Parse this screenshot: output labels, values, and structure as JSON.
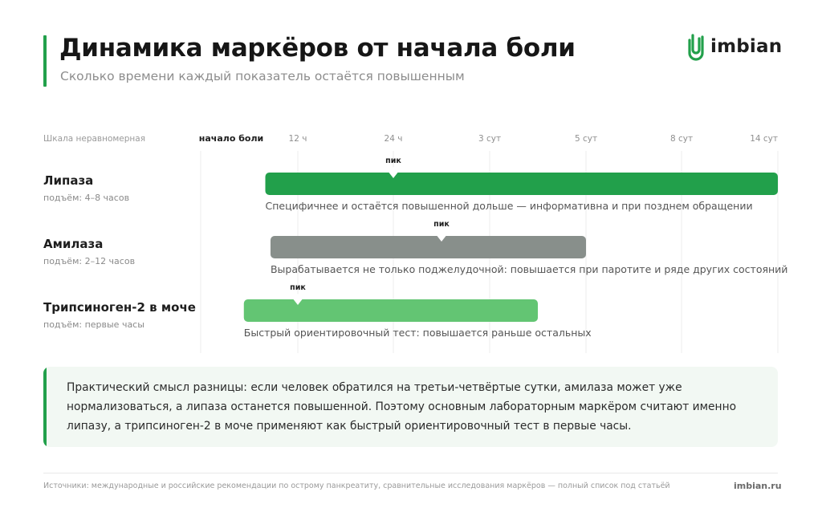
{
  "header": {
    "title": "Динамика маркёров от начала боли",
    "subtitle": "Сколько времени каждый показатель остаётся повышенным"
  },
  "brand": {
    "logo_text": "imbian",
    "site": "imbian.ru",
    "accent_color": "#22a04b"
  },
  "chart_data": {
    "type": "bar",
    "orientation": "horizontal-range",
    "scale_note": "Шкала неравномерная",
    "scale": "non-uniform",
    "ticks": [
      "начало боли",
      "12 ч",
      "24 ч",
      "3 сут",
      "5 сут",
      "8 сут",
      "14 сут"
    ],
    "start_tick": 0,
    "grid": true,
    "peak_label": "пик",
    "series": [
      {
        "name": "Липаза",
        "rise": "подъём: 4–8 часов",
        "start": 0.5,
        "end": 6,
        "peak": 2,
        "color": "#22a04b",
        "note": "Специфичнее и остаётся повышенной дольше — информативна и при позднем обращении"
      },
      {
        "name": "Амилаза",
        "rise": "подъём: 2–12 часов",
        "start": 0.58,
        "end": 4,
        "peak": 2.5,
        "color": "#888f8b",
        "note": "Вырабатывается не только поджелудочной: повышается при паротите и ряде других состояний"
      },
      {
        "name": "Трипсиноген-2 в моче",
        "rise": "подъём: первые часы",
        "start": 0.17,
        "end": 3.5,
        "peak": 1,
        "color": "#63c573",
        "note": "Быстрый ориентировочный тест: повышается раньше остальных"
      }
    ]
  },
  "note": {
    "text": "Практический смысл разницы: если человек обратился на третьи-четвёртые сутки, амилаза может уже нормализоваться, а липаза останется повышенной. Поэтому основным лабораторным маркёром считают именно липазу, а трипсиноген-2 в моче применяют как быстрый ориентировочный тест в первые часы."
  },
  "footer": {
    "sources": "Источники: международные и российские рекомендации по острому панкреатиту, сравнительные исследования маркёров — полный список под статьёй"
  }
}
